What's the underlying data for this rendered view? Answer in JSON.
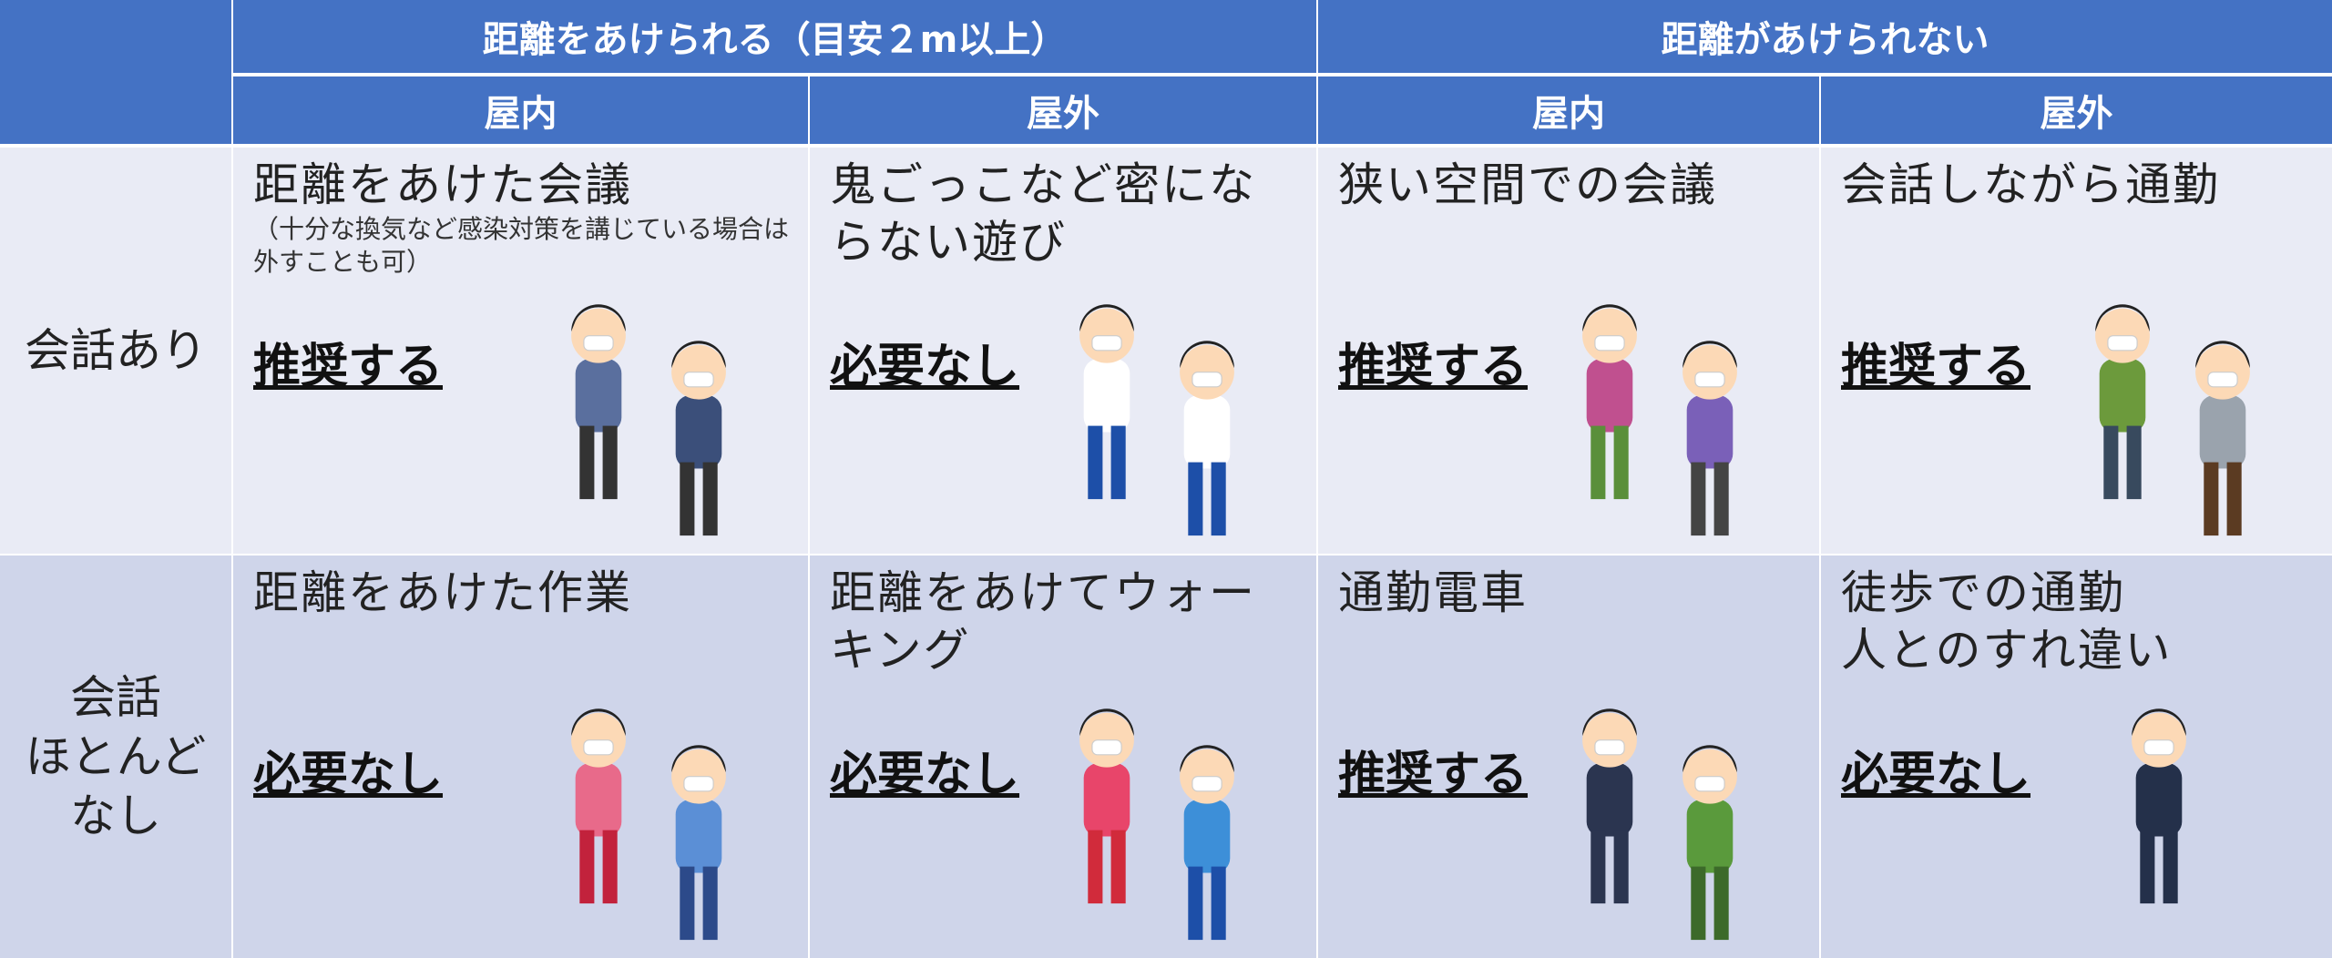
{
  "table": {
    "header_groups": [
      "距離をあけられる（目安２m以上）",
      "距離があけられない"
    ],
    "subheaders": [
      "屋内",
      "屋外",
      "屋内",
      "屋外"
    ],
    "rows": [
      {
        "label": "会話あり",
        "cells": [
          {
            "situation": "距離をあけた会議",
            "note": "（十分な換気など感染対策を講じている場合は外すことも可）",
            "judgment": "推奨する"
          },
          {
            "situation": "鬼ごっこなど密にならない遊び",
            "judgment": "必要なし"
          },
          {
            "situation": "狭い空間での会議",
            "judgment": "推奨する"
          },
          {
            "situation": "会話しながら通勤",
            "judgment": "推奨する"
          }
        ]
      },
      {
        "label": "会話\nほとんど\nなし",
        "cells": [
          {
            "situation": "距離をあけた作業",
            "judgment": "必要なし"
          },
          {
            "situation": "距離をあけてウォーキング",
            "judgment": "必要なし"
          },
          {
            "situation": "通勤電車",
            "judgment": "推奨する"
          },
          {
            "situation": "徒歩での通勤\n人とのすれ違い",
            "judgment": "必要なし"
          }
        ]
      }
    ]
  }
}
